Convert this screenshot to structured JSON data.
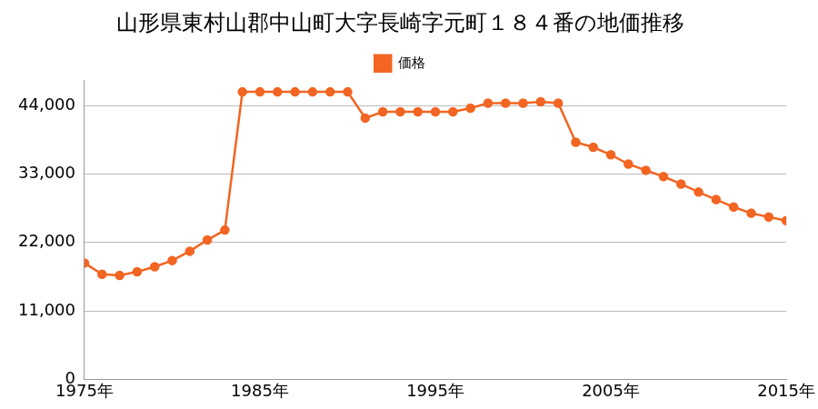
{
  "chart_data": {
    "type": "line",
    "title": "山形県東村山郡中山町大字長崎字元町１８４番の地価推移",
    "x": [
      1975,
      1976,
      1977,
      1978,
      1979,
      1980,
      1981,
      1982,
      1983,
      1984,
      1985,
      1986,
      1987,
      1988,
      1989,
      1990,
      1991,
      1992,
      1993,
      1994,
      1995,
      1996,
      1997,
      1998,
      1999,
      2000,
      2001,
      2002,
      2003,
      2004,
      2005,
      2006,
      2007,
      2008,
      2009,
      2010,
      2011,
      2012,
      2013,
      2014,
      2015
    ],
    "series": [
      {
        "name": "価格",
        "color": "#f26522",
        "marker": "circle",
        "values": [
          18700,
          16900,
          16700,
          17300,
          18100,
          19100,
          20600,
          22400,
          24000,
          46200,
          46200,
          46200,
          46200,
          46200,
          46200,
          46200,
          42000,
          43000,
          43000,
          43000,
          43000,
          43000,
          43600,
          44400,
          44400,
          44400,
          44600,
          44400,
          38100,
          37300,
          36100,
          34600,
          33600,
          32600,
          31400,
          30100,
          28900,
          27700,
          26700,
          26100,
          25500
        ]
      }
    ],
    "xlim": [
      1975,
      2015
    ],
    "xticks": [
      {
        "value": 1975,
        "label": "1975年"
      },
      {
        "value": 1985,
        "label": "1985年"
      },
      {
        "value": 1995,
        "label": "1995年"
      },
      {
        "value": 2005,
        "label": "2005年"
      },
      {
        "value": 2015,
        "label": "2015年"
      }
    ],
    "ylim": [
      0,
      48000
    ],
    "yticks": [
      0,
      {
        "value": 11000,
        "label": "11,000"
      },
      {
        "value": 22000,
        "label": "22,000"
      },
      {
        "value": 33000,
        "label": "33,000"
      },
      {
        "value": 44000,
        "label": "44,000"
      }
    ],
    "grid": true,
    "legend": "top"
  }
}
